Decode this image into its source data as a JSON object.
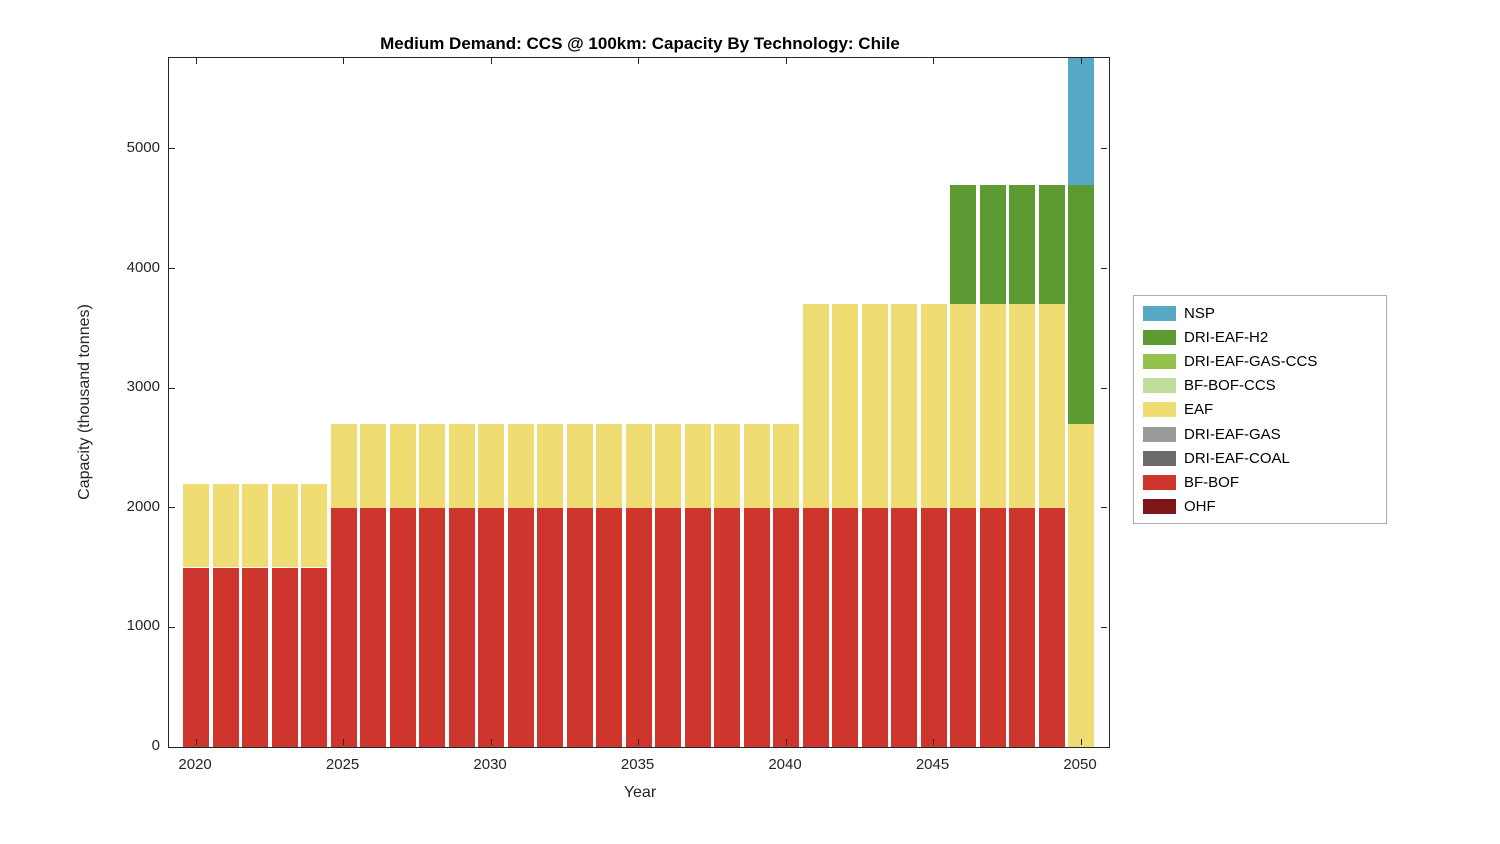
{
  "figure": {
    "title": "Medium Demand: CCS @ 100km: Capacity By Technology: Chile"
  },
  "chart_data": {
    "type": "bar",
    "stacked": true,
    "title": "Medium Demand: CCS @ 100km: Capacity By Technology: Chile",
    "xlabel": "Year",
    "ylabel": "Capacity (thousand tonnes)",
    "x": [
      2020,
      2021,
      2022,
      2023,
      2024,
      2025,
      2026,
      2027,
      2028,
      2029,
      2030,
      2031,
      2032,
      2033,
      2034,
      2035,
      2036,
      2037,
      2038,
      2039,
      2040,
      2041,
      2042,
      2043,
      2044,
      2045,
      2046,
      2047,
      2048,
      2049,
      2050
    ],
    "xticks": [
      2020,
      2025,
      2030,
      2035,
      2040,
      2045,
      2050
    ],
    "yticks": [
      0,
      1000,
      2000,
      3000,
      4000,
      5000
    ],
    "xlim": [
      2019.08,
      2050.95
    ],
    "ylim": [
      0,
      5760
    ],
    "grid": false,
    "background": "#ffffff",
    "axis_color": "#262626",
    "legend_position": "right-outside",
    "legend_order": [
      "NSP",
      "DRI-EAF-H2",
      "DRI-EAF-GAS-CCS",
      "BF-BOF-CCS",
      "EAF",
      "DRI-EAF-GAS",
      "DRI-EAF-COAL",
      "BF-BOF",
      "OHF"
    ],
    "series": [
      {
        "name": "OHF",
        "color": "#7e1516",
        "values": [
          0,
          0,
          0,
          0,
          0,
          0,
          0,
          0,
          0,
          0,
          0,
          0,
          0,
          0,
          0,
          0,
          0,
          0,
          0,
          0,
          0,
          0,
          0,
          0,
          0,
          0,
          0,
          0,
          0,
          0,
          0
        ]
      },
      {
        "name": "BF-BOF",
        "color": "#ce352c",
        "values": [
          1500,
          1500,
          1500,
          1500,
          1500,
          2000,
          2000,
          2000,
          2000,
          2000,
          2000,
          2000,
          2000,
          2000,
          2000,
          2000,
          2000,
          2000,
          2000,
          2000,
          2000,
          2000,
          2000,
          2000,
          2000,
          2000,
          2000,
          2000,
          2000,
          2000,
          0
        ]
      },
      {
        "name": "DRI-EAF-COAL",
        "color": "#6b6b6b",
        "values": [
          0,
          0,
          0,
          0,
          0,
          0,
          0,
          0,
          0,
          0,
          0,
          0,
          0,
          0,
          0,
          0,
          0,
          0,
          0,
          0,
          0,
          0,
          0,
          0,
          0,
          0,
          0,
          0,
          0,
          0,
          0
        ]
      },
      {
        "name": "DRI-EAF-GAS",
        "color": "#999999",
        "values": [
          0,
          0,
          0,
          0,
          0,
          0,
          0,
          0,
          0,
          0,
          0,
          0,
          0,
          0,
          0,
          0,
          0,
          0,
          0,
          0,
          0,
          0,
          0,
          0,
          0,
          0,
          0,
          0,
          0,
          0,
          0
        ]
      },
      {
        "name": "EAF",
        "color": "#efdd73",
        "values": [
          700,
          700,
          700,
          700,
          700,
          700,
          700,
          700,
          700,
          700,
          700,
          700,
          700,
          700,
          700,
          700,
          700,
          700,
          700,
          700,
          700,
          1700,
          1700,
          1700,
          1700,
          1700,
          1700,
          1700,
          1700,
          1700,
          2700
        ]
      },
      {
        "name": "BF-BOF-CCS",
        "color": "#c1dd9b",
        "values": [
          0,
          0,
          0,
          0,
          0,
          0,
          0,
          0,
          0,
          0,
          0,
          0,
          0,
          0,
          0,
          0,
          0,
          0,
          0,
          0,
          0,
          0,
          0,
          0,
          0,
          0,
          0,
          0,
          0,
          0,
          0
        ]
      },
      {
        "name": "DRI-EAF-GAS-CCS",
        "color": "#94c34d",
        "values": [
          0,
          0,
          0,
          0,
          0,
          0,
          0,
          0,
          0,
          0,
          0,
          0,
          0,
          0,
          0,
          0,
          0,
          0,
          0,
          0,
          0,
          0,
          0,
          0,
          0,
          0,
          0,
          0,
          0,
          0,
          0
        ]
      },
      {
        "name": "DRI-EAF-H2",
        "color": "#5e9a32",
        "values": [
          0,
          0,
          0,
          0,
          0,
          0,
          0,
          0,
          0,
          0,
          0,
          0,
          0,
          0,
          0,
          0,
          0,
          0,
          0,
          0,
          0,
          0,
          0,
          0,
          0,
          0,
          1000,
          1000,
          1000,
          1000,
          2000
        ]
      },
      {
        "name": "NSP",
        "color": "#57a8c5",
        "values": [
          0,
          0,
          0,
          0,
          0,
          0,
          0,
          0,
          0,
          0,
          0,
          0,
          0,
          0,
          0,
          0,
          0,
          0,
          0,
          0,
          0,
          0,
          0,
          0,
          0,
          0,
          0,
          0,
          0,
          0,
          1100
        ]
      }
    ]
  }
}
